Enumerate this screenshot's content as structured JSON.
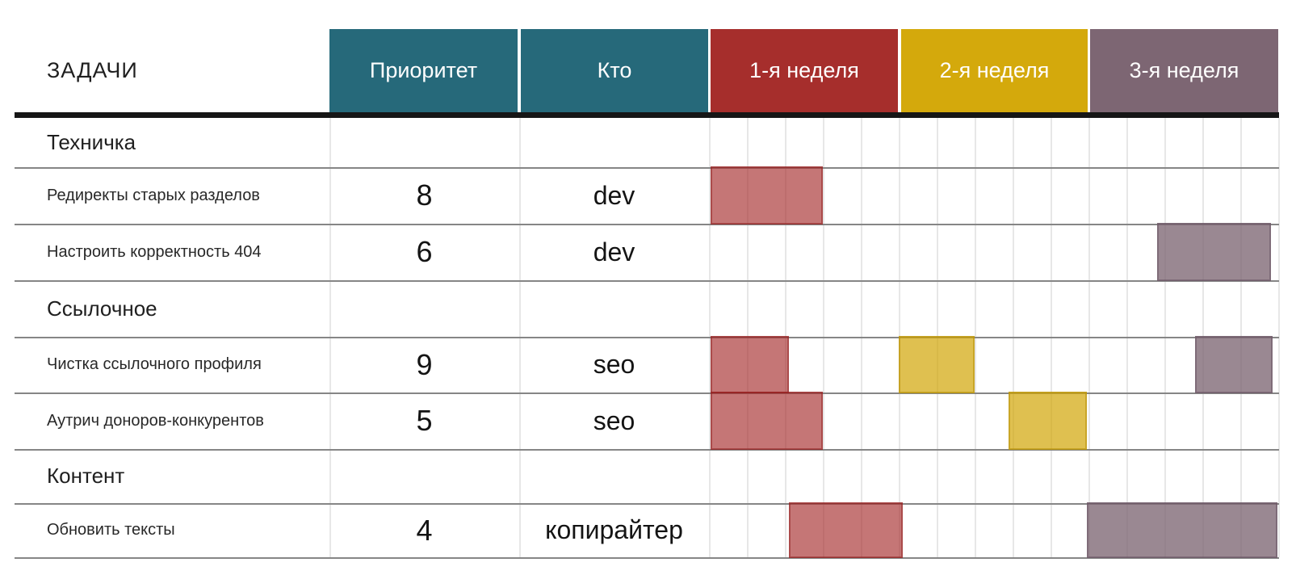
{
  "header": {
    "tasks_label": "ЗАДАЧИ",
    "priority_label": "Приоритет",
    "who_label": "Кто",
    "weeks": [
      {
        "label": "1-я неделя"
      },
      {
        "label": "2-я неделя"
      },
      {
        "label": "3-я неделя"
      }
    ]
  },
  "colors": {
    "header_teal": "#26697a",
    "week1": "#a62e2c",
    "week2": "#d4a90c",
    "week3": "#7d6673",
    "bar_week1": "rgba(166,44,44,0.65)",
    "bar_week2": "rgba(210,167,13,0.72)",
    "bar_week3": "rgba(125,102,115,0.78)",
    "bar_border_week1": "rgba(140,25,25,0.45)",
    "bar_border_week2": "rgba(180,140,0,0.5)",
    "bar_border_week3": "rgba(100,80,95,0.5)"
  },
  "rows": [
    {
      "type": "section",
      "label": "Техничка"
    },
    {
      "type": "task",
      "label": "Редиректы старых разделов",
      "priority": "8",
      "who": "dev"
    },
    {
      "type": "task",
      "label": "Настроить корректность 404",
      "priority": "6",
      "who": "dev"
    },
    {
      "type": "section",
      "label": "Ссылочное"
    },
    {
      "type": "task",
      "label": "Чистка ссылочного профиля",
      "priority": "9",
      "who": "seo"
    },
    {
      "type": "task",
      "label": "Аутрич доноров-конкурентов",
      "priority": "5",
      "who": "seo"
    },
    {
      "type": "section",
      "label": "Контент"
    },
    {
      "type": "task",
      "label": "Обновить тексты",
      "priority": "4",
      "who": "копирайтер"
    }
  ],
  "chart_data": {
    "type": "gantt",
    "title": "ЗАДАЧИ",
    "x_axis": {
      "weeks": [
        "1-я неделя",
        "2-я неделя",
        "3-я неделя"
      ],
      "days_per_week": 5,
      "total_days": 15,
      "grid": true
    },
    "sections": [
      "Техничка",
      "Ссылочное",
      "Контент"
    ],
    "tasks": [
      {
        "section": "Техничка",
        "label": "Редиректы старых разделов",
        "priority": 8,
        "who": "dev",
        "bars": [
          {
            "week": 1,
            "start_day": 0.05,
            "end_day": 3.0
          }
        ]
      },
      {
        "section": "Техничка",
        "label": "Настроить корректность 404",
        "priority": 6,
        "who": "dev",
        "bars": [
          {
            "week": 3,
            "start_day": 11.8,
            "end_day": 14.8
          }
        ]
      },
      {
        "section": "Ссылочное",
        "label": "Чистка ссылочного профиля",
        "priority": 9,
        "who": "seo",
        "bars": [
          {
            "week": 1,
            "start_day": 0.05,
            "end_day": 2.1
          },
          {
            "week": 2,
            "start_day": 5.0,
            "end_day": 7.0
          },
          {
            "week": 3,
            "start_day": 12.8,
            "end_day": 14.85
          }
        ]
      },
      {
        "section": "Ссылочное",
        "label": "Аутрич доноров-конкурентов",
        "priority": 5,
        "who": "seo",
        "bars": [
          {
            "week": 1,
            "start_day": 0.05,
            "end_day": 3.0
          },
          {
            "week": 2,
            "start_day": 7.9,
            "end_day": 9.95
          }
        ]
      },
      {
        "section": "Контент",
        "label": "Обновить тексты",
        "priority": 4,
        "who": "копирайтер",
        "bars": [
          {
            "week": 1,
            "start_day": 2.1,
            "end_day": 5.1
          },
          {
            "week": 3,
            "start_day": 9.95,
            "end_day": 14.97
          }
        ]
      }
    ]
  }
}
